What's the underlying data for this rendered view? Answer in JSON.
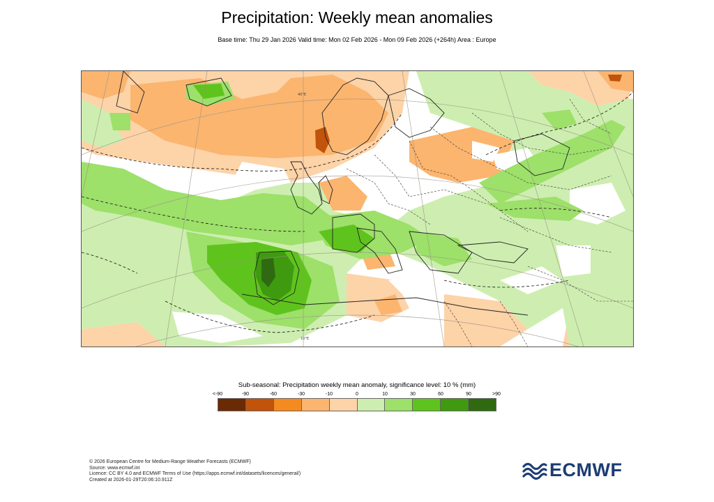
{
  "header": {
    "title": "Precipitation: Weekly mean anomalies",
    "subtitle": "Base time: Thu 29 Jan 2026 Valid time: Mon 02 Feb 2026 - Mon 09 Feb 2026 (+264h) Area : Europe"
  },
  "map": {
    "area": "Europe",
    "grid_labels": {
      "north_label": "40°E",
      "south_label": "10°E"
    }
  },
  "legend": {
    "title": "Sub-seasonal: Precipitation weekly mean anomaly, significance level: 10 % (mm)",
    "labels": [
      "<-90",
      "-90",
      "-60",
      "-30",
      "-10",
      "0",
      "10",
      "30",
      "60",
      "90",
      ">90"
    ],
    "colors": [
      "#6b2a06",
      "#c1530b",
      "#f58a1f",
      "#fbb56f",
      "#fdd3a8",
      "#cdeeb0",
      "#9de06a",
      "#5fc31d",
      "#3f9a10",
      "#2f6a11"
    ]
  },
  "footer": {
    "lines": [
      "© 2026 European Centre for Medium-Range Weather Forecasts (ECMWF)",
      "Source: www.ecmwf.int",
      "Licence: CC BY 4.0 and ECMWF Terms of Use (https://apps.ecmwf.int/datasets/licences/general/)",
      "Created at 2026-01-29T20:06:10.911Z"
    ]
  },
  "logo": {
    "text": "ECMWF",
    "color": "#1d3c73"
  }
}
